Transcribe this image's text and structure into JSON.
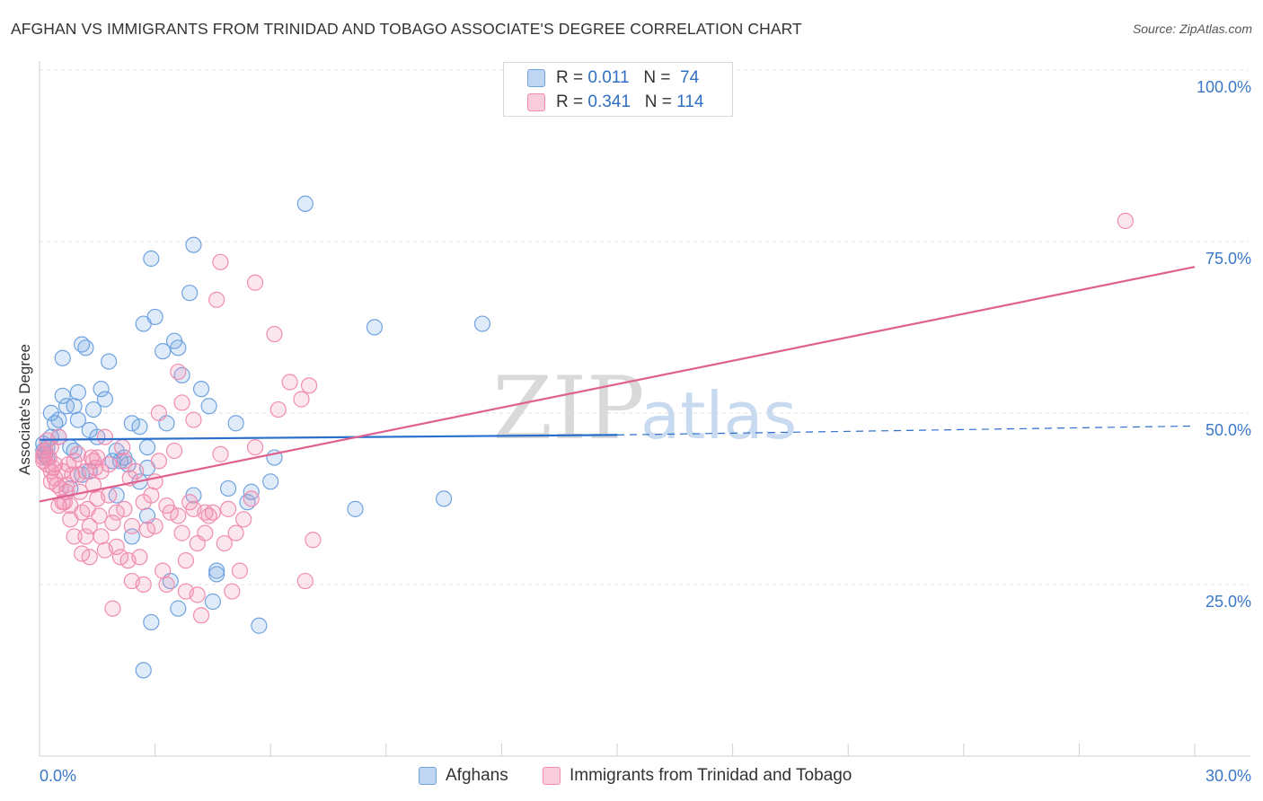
{
  "header": {
    "title": "AFGHAN VS IMMIGRANTS FROM TRINIDAD AND TOBAGO ASSOCIATE'S DEGREE CORRELATION CHART",
    "source": "Source: ZipAtlas.com"
  },
  "watermark": {
    "part1": "ZIP",
    "part2": "atlas"
  },
  "legend": {
    "rows": [
      {
        "r_label": "R =",
        "r_value": "0.011",
        "n_label": "N =",
        "n_value": "74",
        "color": "#6fa3e0"
      },
      {
        "r_label": "R =",
        "r_value": "0.341",
        "n_label": "N =",
        "n_value": "114",
        "color": "#f08db0"
      }
    ],
    "bottom": [
      {
        "label": "Afghans",
        "color": "#6fa3e0"
      },
      {
        "label": "Immigrants from Trinidad and Tobago",
        "color": "#f08db0"
      }
    ]
  },
  "chart_data": {
    "type": "scatter",
    "title": "AFGHAN VS IMMIGRANTS FROM TRINIDAD AND TOBAGO ASSOCIATE'S DEGREE CORRELATION CHART",
    "xlabel": "",
    "ylabel": "Associate's Degree",
    "xlim": [
      0,
      30
    ],
    "ylim": [
      5,
      105
    ],
    "x_tick_labels": [
      "0.0%",
      "30.0%"
    ],
    "y_ticks": [
      25,
      50,
      75,
      100
    ],
    "y_tick_labels": [
      "25.0%",
      "50.0%",
      "75.0%",
      "100.0%"
    ],
    "grid": true,
    "legend_position": "top-center",
    "series": [
      {
        "name": "Afghans",
        "color": "#6fa3e0",
        "line_color": "#2b6fcc",
        "trend": {
          "x0": 0,
          "y0": 48.6,
          "x1": 15,
          "y1": 49.3,
          "dashed_to": 30,
          "dashed_y": 50.6
        },
        "points": [
          [
            0.2,
            47.5
          ],
          [
            0.2,
            46
          ],
          [
            0.3,
            52.5
          ],
          [
            0.3,
            49
          ],
          [
            0.4,
            51
          ],
          [
            0.5,
            51.5
          ],
          [
            0.6,
            60.5
          ],
          [
            0.6,
            55
          ],
          [
            0.7,
            53.5
          ],
          [
            0.8,
            47.5
          ],
          [
            0.8,
            41.5
          ],
          [
            0.9,
            53.5
          ],
          [
            1.0,
            51.5
          ],
          [
            1.0,
            55.5
          ],
          [
            1.1,
            62.5
          ],
          [
            1.2,
            62
          ],
          [
            1.3,
            44
          ],
          [
            1.3,
            50
          ],
          [
            1.4,
            53
          ],
          [
            1.5,
            49
          ],
          [
            1.6,
            56
          ],
          [
            1.7,
            54.5
          ],
          [
            1.8,
            60
          ],
          [
            1.9,
            45.5
          ],
          [
            2.0,
            47
          ],
          [
            2.0,
            40.5
          ],
          [
            2.2,
            46
          ],
          [
            2.3,
            45
          ],
          [
            2.4,
            51
          ],
          [
            2.4,
            34.5
          ],
          [
            2.6,
            50.5
          ],
          [
            2.6,
            42.5
          ],
          [
            2.7,
            65.5
          ],
          [
            2.8,
            47.5
          ],
          [
            2.8,
            44.5
          ],
          [
            2.8,
            37.5
          ],
          [
            2.9,
            75
          ],
          [
            2.9,
            22
          ],
          [
            3.0,
            66.5
          ],
          [
            3.2,
            61.5
          ],
          [
            3.3,
            51
          ],
          [
            3.4,
            28
          ],
          [
            3.5,
            63
          ],
          [
            3.6,
            62
          ],
          [
            3.6,
            24
          ],
          [
            3.7,
            58
          ],
          [
            3.9,
            70
          ],
          [
            4.0,
            40.5
          ],
          [
            4.0,
            77
          ],
          [
            4.2,
            56
          ],
          [
            4.4,
            53.5
          ],
          [
            4.5,
            25
          ],
          [
            4.6,
            29.5
          ],
          [
            4.6,
            29
          ],
          [
            4.9,
            41.5
          ],
          [
            5.1,
            51
          ],
          [
            5.4,
            39.5
          ],
          [
            5.5,
            41
          ],
          [
            5.7,
            21.5
          ],
          [
            6.0,
            42.5
          ],
          [
            6.1,
            46
          ],
          [
            6.9,
            83
          ],
          [
            2.7,
            15
          ],
          [
            8.2,
            38.5
          ],
          [
            8.7,
            65
          ],
          [
            10.5,
            40
          ],
          [
            11.5,
            65.5
          ],
          [
            0.1,
            48
          ],
          [
            0.1,
            47
          ],
          [
            0.15,
            46.5
          ],
          [
            0.5,
            49
          ],
          [
            0.9,
            47
          ],
          [
            1.1,
            43.5
          ],
          [
            2.1,
            45.5
          ]
        ]
      },
      {
        "name": "Immigrants from Trinidad and Tobago",
        "color": "#f08db0",
        "line_color": "#e0608e",
        "trend": {
          "x0": 0,
          "y0": 39.6,
          "x1": 30,
          "y1": 73.8
        },
        "points": [
          [
            0.1,
            46
          ],
          [
            0.1,
            45.5
          ],
          [
            0.1,
            46.5
          ],
          [
            0.15,
            47
          ],
          [
            0.2,
            45
          ],
          [
            0.2,
            48.5
          ],
          [
            0.25,
            46
          ],
          [
            0.3,
            44
          ],
          [
            0.3,
            42.5
          ],
          [
            0.4,
            45
          ],
          [
            0.4,
            43
          ],
          [
            0.5,
            49
          ],
          [
            0.5,
            39
          ],
          [
            0.6,
            44
          ],
          [
            0.6,
            39.5
          ],
          [
            0.7,
            42
          ],
          [
            0.7,
            41
          ],
          [
            0.8,
            37
          ],
          [
            0.8,
            39
          ],
          [
            0.9,
            34.5
          ],
          [
            0.9,
            45.5
          ],
          [
            1.0,
            43.5
          ],
          [
            1.0,
            46.5
          ],
          [
            1.1,
            38
          ],
          [
            1.1,
            32
          ],
          [
            1.2,
            34.5
          ],
          [
            1.2,
            44
          ],
          [
            1.3,
            36
          ],
          [
            1.3,
            31.5
          ],
          [
            1.4,
            42
          ],
          [
            1.4,
            45.5
          ],
          [
            1.5,
            46
          ],
          [
            1.5,
            40
          ],
          [
            1.6,
            44
          ],
          [
            1.6,
            34.5
          ],
          [
            1.7,
            49
          ],
          [
            1.7,
            32.5
          ],
          [
            1.8,
            45
          ],
          [
            1.8,
            40.5
          ],
          [
            1.9,
            24
          ],
          [
            1.9,
            36.5
          ],
          [
            2.0,
            38
          ],
          [
            2.0,
            33
          ],
          [
            2.1,
            31.5
          ],
          [
            2.2,
            45.5
          ],
          [
            2.2,
            38.5
          ],
          [
            2.3,
            31
          ],
          [
            2.4,
            28
          ],
          [
            2.4,
            36
          ],
          [
            2.5,
            44
          ],
          [
            2.6,
            31.5
          ],
          [
            2.7,
            39.5
          ],
          [
            2.7,
            27.5
          ],
          [
            2.8,
            35.5
          ],
          [
            2.9,
            40.5
          ],
          [
            3.0,
            42.5
          ],
          [
            3.0,
            36
          ],
          [
            3.1,
            52.5
          ],
          [
            3.1,
            45.5
          ],
          [
            3.2,
            29.5
          ],
          [
            3.3,
            39
          ],
          [
            3.3,
            27.5
          ],
          [
            3.4,
            38
          ],
          [
            3.5,
            47
          ],
          [
            3.6,
            58.5
          ],
          [
            3.6,
            37.5
          ],
          [
            3.7,
            54
          ],
          [
            3.7,
            35
          ],
          [
            3.8,
            31
          ],
          [
            3.8,
            26.5
          ],
          [
            3.9,
            39.5
          ],
          [
            4.0,
            51.5
          ],
          [
            4.0,
            38.5
          ],
          [
            4.1,
            33.5
          ],
          [
            4.1,
            26
          ],
          [
            4.2,
            23
          ],
          [
            4.3,
            38
          ],
          [
            4.3,
            35
          ],
          [
            4.4,
            37.5
          ],
          [
            4.5,
            38
          ],
          [
            4.6,
            69
          ],
          [
            4.7,
            74.5
          ],
          [
            4.7,
            46.5
          ],
          [
            4.8,
            33.5
          ],
          [
            4.9,
            38.5
          ],
          [
            5.0,
            26.5
          ],
          [
            5.1,
            35
          ],
          [
            5.2,
            29.5
          ],
          [
            5.3,
            37
          ],
          [
            5.5,
            40
          ],
          [
            5.6,
            47.5
          ],
          [
            5.6,
            71.5
          ],
          [
            6.1,
            64
          ],
          [
            6.2,
            53
          ],
          [
            6.5,
            57
          ],
          [
            6.8,
            54.5
          ],
          [
            7.0,
            56.5
          ],
          [
            6.9,
            28
          ],
          [
            7.1,
            34
          ],
          [
            28.2,
            80.5
          ],
          [
            0.3,
            47.5
          ],
          [
            0.35,
            44.5
          ],
          [
            0.45,
            42
          ],
          [
            0.55,
            41.5
          ],
          [
            0.65,
            39.5
          ],
          [
            0.75,
            45
          ],
          [
            0.85,
            43.5
          ],
          [
            1.05,
            41
          ],
          [
            1.25,
            38.5
          ],
          [
            1.35,
            46
          ],
          [
            1.45,
            44.5
          ],
          [
            1.55,
            37.5
          ],
          [
            2.15,
            47.5
          ],
          [
            2.35,
            43
          ]
        ]
      }
    ]
  }
}
